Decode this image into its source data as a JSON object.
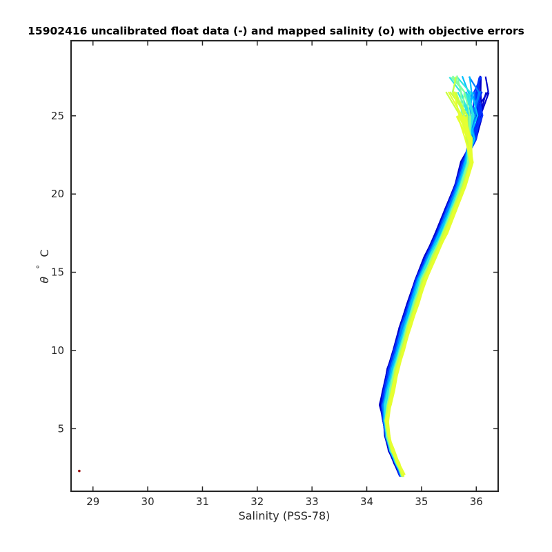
{
  "chart_data": {
    "type": "line",
    "title": "15902416 uncalibrated float data (-) and mapped salinity (o) with objective errors",
    "xlabel": "Salinity (PSS-78)",
    "ylabel_symbol": "θ",
    "ylabel_degree": "°",
    "ylabel_unit": "C",
    "xlim": [
      28.6,
      36.4
    ],
    "ylim": [
      1.0,
      29.8
    ],
    "xticks": [
      29,
      30,
      31,
      32,
      33,
      34,
      35,
      36
    ],
    "yticks": [
      5,
      10,
      15,
      20,
      25
    ],
    "grid": false,
    "colormap": [
      "#0000cc",
      "#0033ff",
      "#0080ff",
      "#00c0ff",
      "#2ee6e0",
      "#80ffa0",
      "#c8ff40",
      "#e6ff30"
    ],
    "mean_profile": [
      [
        34.65,
        2.0
      ],
      [
        34.55,
        2.8
      ],
      [
        34.45,
        3.6
      ],
      [
        34.38,
        4.5
      ],
      [
        34.34,
        5.5
      ],
      [
        34.36,
        6.5
      ],
      [
        34.42,
        7.5
      ],
      [
        34.5,
        8.8
      ],
      [
        34.6,
        10.0
      ],
      [
        34.72,
        11.5
      ],
      [
        34.86,
        13.0
      ],
      [
        35.0,
        14.5
      ],
      [
        35.18,
        16.0
      ],
      [
        35.38,
        17.5
      ],
      [
        35.55,
        19.0
      ],
      [
        35.72,
        20.5
      ],
      [
        35.85,
        22.0
      ],
      [
        35.92,
        23.5
      ],
      [
        35.95,
        25.0
      ],
      [
        35.92,
        26.5
      ],
      [
        35.88,
        27.5
      ]
    ],
    "profile_count": 60,
    "mapped_salinity": [
      [
        28.75,
        2.3
      ]
    ],
    "mapped_color": "#990000"
  }
}
